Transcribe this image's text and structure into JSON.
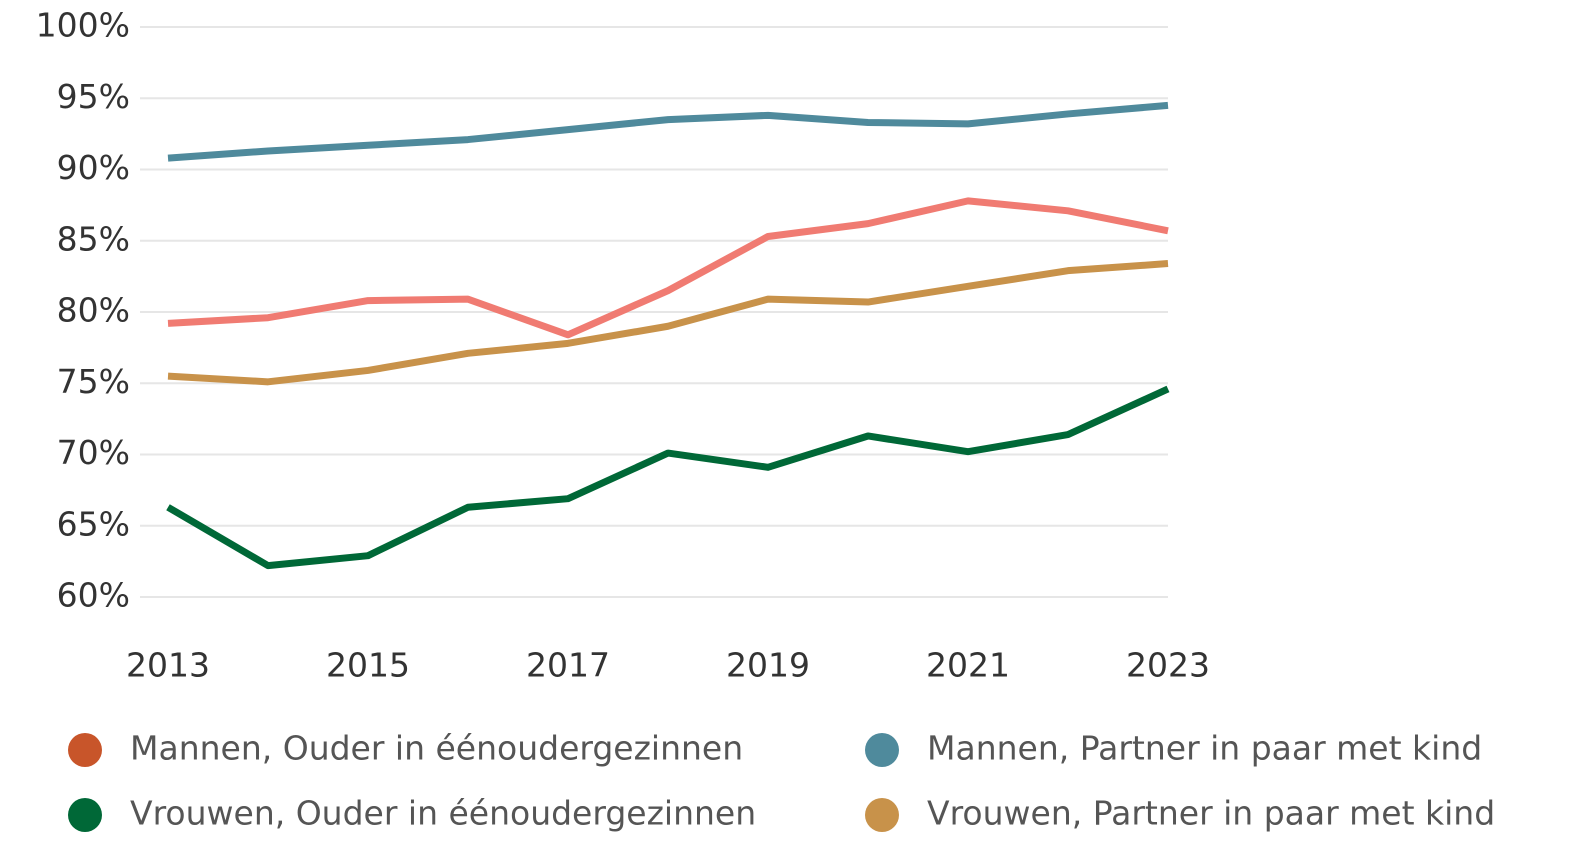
{
  "chart_data": {
    "type": "line",
    "x": [
      2013,
      2014,
      2015,
      2016,
      2017,
      2018,
      2019,
      2020,
      2021,
      2022,
      2023
    ],
    "xlim": [
      2013,
      2023
    ],
    "xticks": [
      2013,
      2015,
      2017,
      2019,
      2021,
      2023
    ],
    "ylim": [
      60,
      100
    ],
    "yticks": [
      {
        "value": 60,
        "label": "60%"
      },
      {
        "value": 65,
        "label": "65%"
      },
      {
        "value": 70,
        "label": "70%"
      },
      {
        "value": 75,
        "label": "75%"
      },
      {
        "value": 80,
        "label": "80%"
      },
      {
        "value": 85,
        "label": "85%"
      },
      {
        "value": 90,
        "label": "90%"
      },
      {
        "value": 95,
        "label": "95%"
      },
      {
        "value": 100,
        "label": "100%"
      }
    ],
    "grid": true,
    "legend": "bottom",
    "series": [
      {
        "name": "Mannen, Ouder in éénoudergezinnen",
        "color": "#f07b72",
        "legend_color": "#c8552a",
        "values": [
          79.2,
          79.6,
          80.8,
          80.9,
          78.4,
          81.5,
          85.3,
          86.2,
          87.8,
          87.1,
          85.7
        ]
      },
      {
        "name": "Mannen, Partner in paar met kind",
        "color": "#4f8a9c",
        "values": [
          90.8,
          91.3,
          91.7,
          92.1,
          92.8,
          93.5,
          93.8,
          93.3,
          93.2,
          93.9,
          94.5
        ]
      },
      {
        "name": "Vrouwen, Ouder in éénoudergezinnen",
        "color": "#006837",
        "values": [
          66.3,
          62.2,
          62.9,
          66.3,
          66.9,
          70.1,
          69.1,
          71.3,
          70.2,
          71.4,
          74.6
        ]
      },
      {
        "name": "Vrouwen, Partner in paar met kind",
        "color": "#c8924a",
        "values": [
          75.5,
          75.1,
          75.9,
          77.1,
          77.8,
          79.0,
          80.9,
          80.7,
          81.8,
          82.9,
          83.4
        ]
      }
    ]
  }
}
